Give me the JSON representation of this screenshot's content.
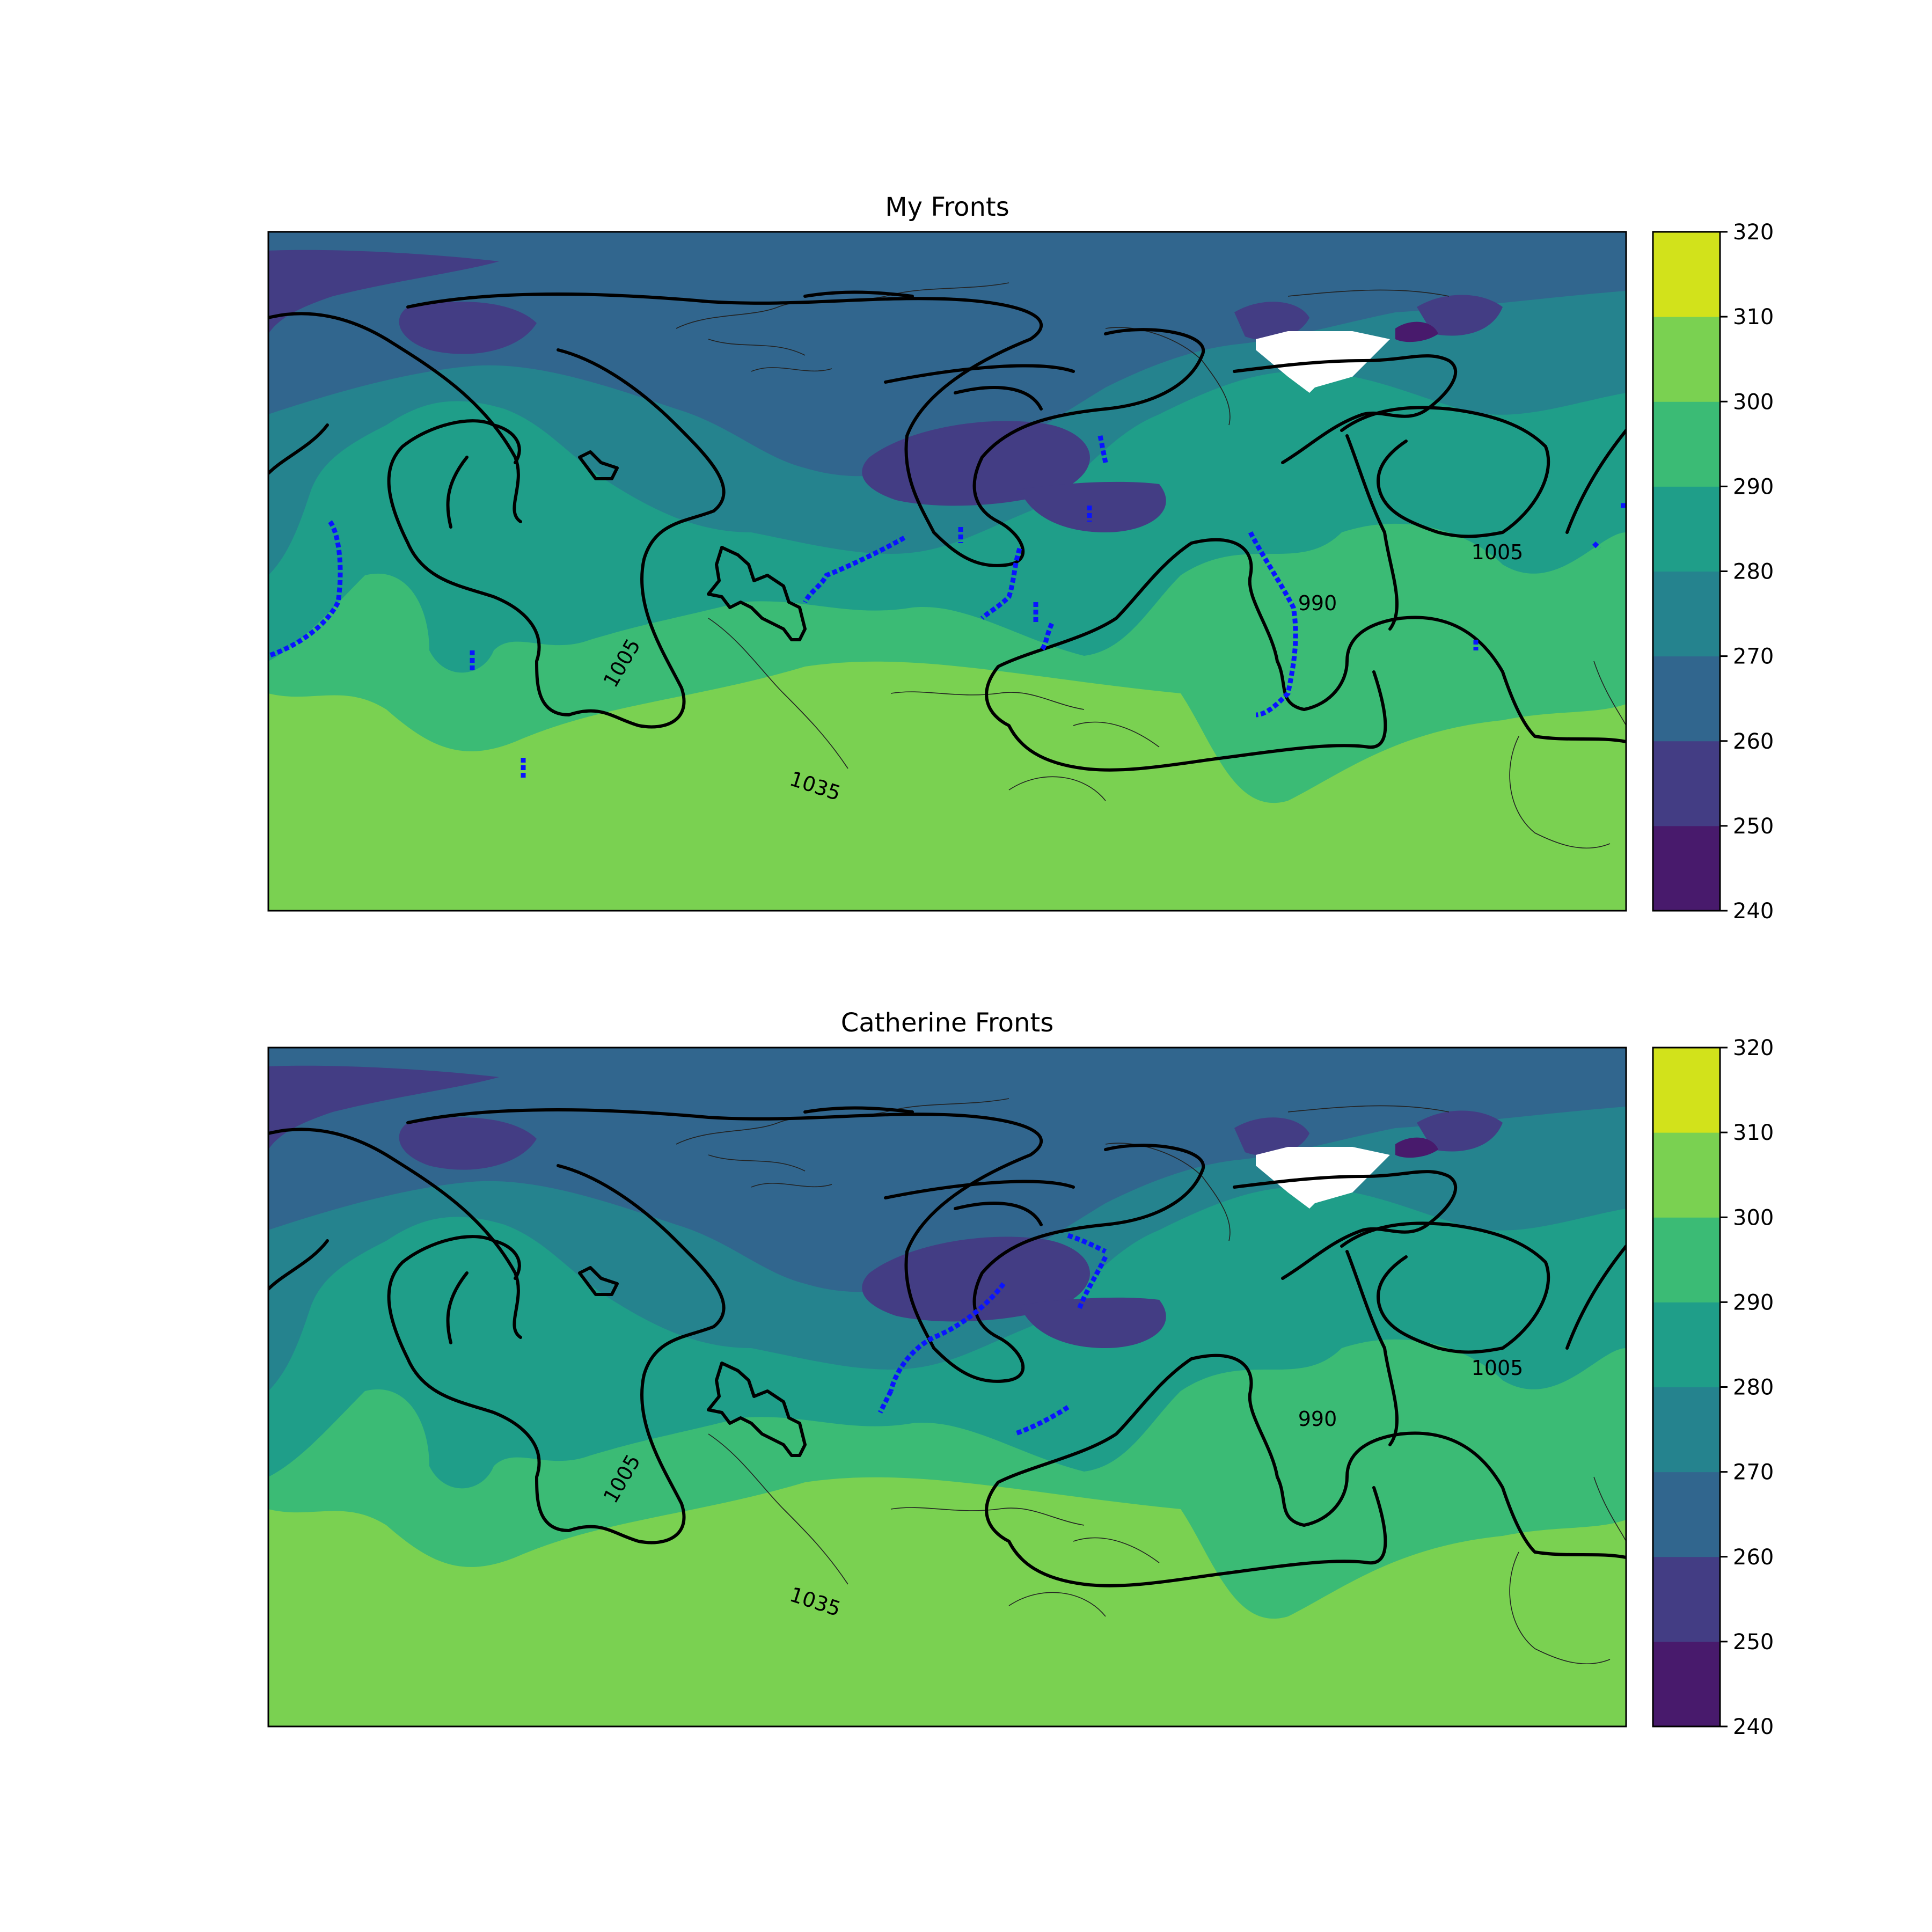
{
  "panels": [
    {
      "id": "my-fronts",
      "title": "My Fronts",
      "isobar_labels": [
        "1005",
        "990",
        "1005",
        "1035",
        "1035"
      ],
      "colorbar_ticks": [
        "320",
        "310",
        "300",
        "290",
        "280",
        "270",
        "260",
        "250",
        "240"
      ]
    },
    {
      "id": "catherine-fronts",
      "title": "Catherine Fronts",
      "isobar_labels": [
        "1005",
        "990",
        "1005",
        "1035",
        "1035"
      ],
      "colorbar_ticks": [
        "320",
        "310",
        "300",
        "290",
        "280",
        "270",
        "260",
        "250",
        "240"
      ]
    }
  ],
  "colorbar_levels": [
    240,
    250,
    260,
    270,
    280,
    290,
    300,
    310,
    320
  ],
  "colors": {
    "240": "#481a6c",
    "250": "#433d84",
    "260": "#31668e",
    "270": "#25838e",
    "280": "#1f9e89",
    "290": "#3bbb75",
    "300": "#7ad151",
    "310": "#d2e21b",
    "fronts": "#0a14ff",
    "isobars": "#000000",
    "missing": "#ffffff"
  }
}
